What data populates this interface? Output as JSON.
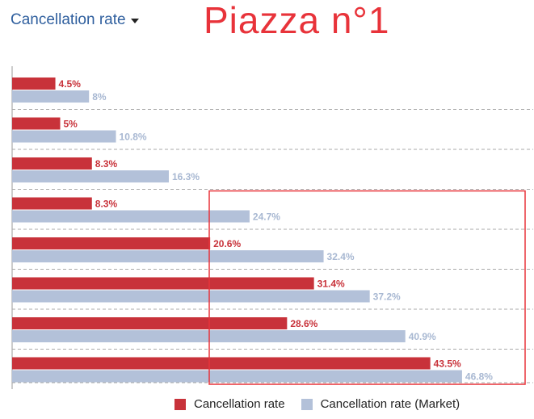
{
  "header": {
    "dropdown_label": "Cancellation rate",
    "annotation": "Piazza n°1"
  },
  "colors": {
    "primary": "#c8323a",
    "market": "#b3c1d9",
    "primary_label": "#c8323a",
    "market_label": "#a8b8d2",
    "highlight": "#e8333a"
  },
  "chart_data": {
    "type": "bar",
    "orientation": "horizontal",
    "categories": [
      "",
      "",
      "",
      "",
      "",
      "",
      "",
      ""
    ],
    "series": [
      {
        "name": "Cancellation rate",
        "values": [
          4.5,
          5,
          8.3,
          8.3,
          20.6,
          31.4,
          28.6,
          43.5
        ]
      },
      {
        "name": "Cancellation rate (Market)",
        "values": [
          8,
          10.8,
          16.3,
          24.7,
          32.4,
          37.2,
          40.9,
          46.8
        ]
      }
    ],
    "data_labels": [
      [
        "4.5%",
        "5%",
        "8.3%",
        "8.3%",
        "20.6%",
        "31.4%",
        "28.6%",
        "43.5%"
      ],
      [
        "8%",
        "10.8%",
        "16.3%",
        "24.7%",
        "32.4%",
        "37.2%",
        "40.9%",
        "46.8%"
      ]
    ],
    "xlim": [
      0,
      50
    ],
    "grid": "dashed horizontal separators",
    "legend_position": "bottom",
    "highlight_rows": [
      3,
      7
    ]
  }
}
